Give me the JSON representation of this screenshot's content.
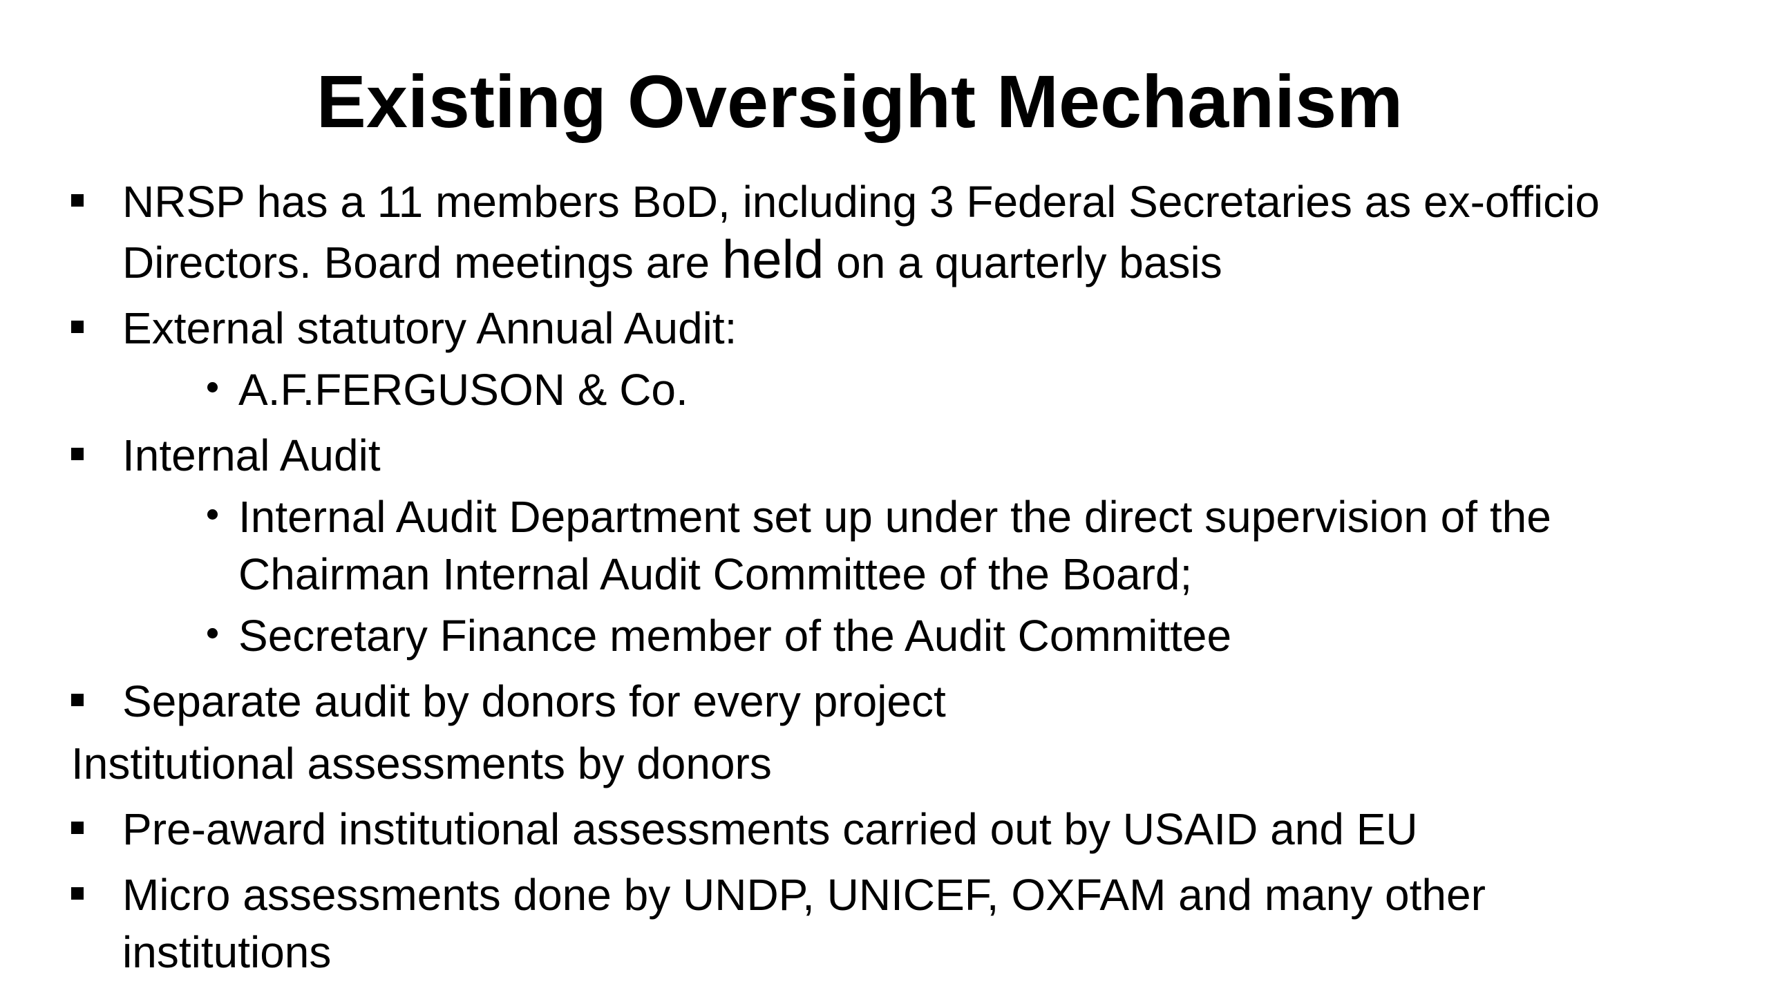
{
  "slide": {
    "title": "Existing Oversight Mechanism",
    "colors": {
      "background": "#ffffff",
      "text": "#000000"
    },
    "icons": {
      "level1_bullet": "square-bullet",
      "level2_bullet": "round-bullet"
    },
    "items": [
      {
        "level": 1,
        "bullet": "square",
        "lines": [
          "NRSP has a 11 members BoD, including 3 Federal Secretaries as ex-officio"
        ],
        "line2": {
          "prefix": "Directors. Board meetings are ",
          "emphasis": "held",
          "suffix": " on a quarterly basis"
        }
      },
      {
        "level": 1,
        "bullet": "square",
        "lines": [
          "External statutory Annual Audit:"
        ]
      },
      {
        "level": 2,
        "bullet": "circle",
        "lines": [
          "A.F.FERGUSON & Co."
        ]
      },
      {
        "level": 1,
        "bullet": "square",
        "lines": [
          "Internal Audit"
        ]
      },
      {
        "level": 2,
        "bullet": "circle",
        "lines": [
          "Internal Audit Department set up under the direct supervision of the",
          "Chairman Internal Audit Committee of the Board;"
        ]
      },
      {
        "level": 2,
        "bullet": "circle",
        "lines": [
          "Secretary Finance member of the Audit Committee"
        ]
      },
      {
        "level": 1,
        "bullet": "square",
        "lines": [
          "Separate audit by donors for every project"
        ]
      },
      {
        "level": 0,
        "bullet": "none",
        "lines": [
          "Institutional assessments by donors"
        ]
      },
      {
        "level": 1,
        "bullet": "square",
        "lines": [
          "Pre-award institutional assessments carried out by USAID and EU"
        ]
      },
      {
        "level": 1,
        "bullet": "square",
        "lines": [
          "Micro assessments done by UNDP, UNICEF, OXFAM and many other",
          "institutions"
        ]
      }
    ]
  }
}
